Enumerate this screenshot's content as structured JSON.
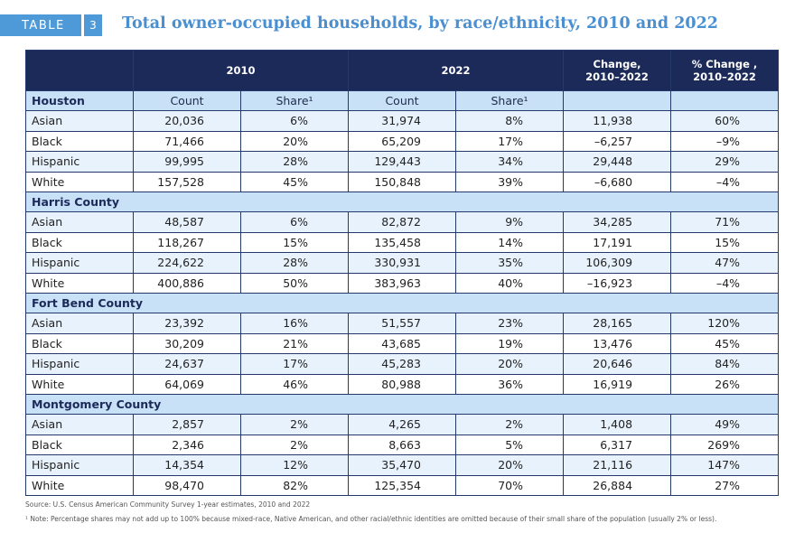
{
  "header": {
    "tag_label": "TABLE",
    "tag_number": "3",
    "title": "Total owner-occupied households, by race/ethnicity, 2010 and 2022"
  },
  "columns": {
    "year1": "2010",
    "year2": "2022",
    "change": "Change,",
    "change_range": "2010–2022",
    "pct_change": "% Change ,",
    "pct_change_range": "2010–2022",
    "count": "Count",
    "share": "Share¹"
  },
  "regions": [
    {
      "name": "Houston",
      "rows": [
        {
          "group": "Asian",
          "count2010": "20,036",
          "share2010": "6%",
          "count2022": "31,974",
          "share2022": "8%",
          "change": "11,938",
          "pct": "60%"
        },
        {
          "group": "Black",
          "count2010": "71,466",
          "share2010": "20%",
          "count2022": "65,209",
          "share2022": "17%",
          "change": "–6,257",
          "pct": "–9%"
        },
        {
          "group": "Hispanic",
          "count2010": "99,995",
          "share2010": "28%",
          "count2022": "129,443",
          "share2022": "34%",
          "change": "29,448",
          "pct": "29%"
        },
        {
          "group": "White",
          "count2010": "157,528",
          "share2010": "45%",
          "count2022": "150,848",
          "share2022": "39%",
          "change": "–6,680",
          "pct": "–4%"
        }
      ]
    },
    {
      "name": "Harris County",
      "rows": [
        {
          "group": "Asian",
          "count2010": "48,587",
          "share2010": "6%",
          "count2022": "82,872",
          "share2022": "9%",
          "change": "34,285",
          "pct": "71%"
        },
        {
          "group": "Black",
          "count2010": "118,267",
          "share2010": "15%",
          "count2022": "135,458",
          "share2022": "14%",
          "change": "17,191",
          "pct": "15%"
        },
        {
          "group": "Hispanic",
          "count2010": "224,622",
          "share2010": "28%",
          "count2022": "330,931",
          "share2022": "35%",
          "change": "106,309",
          "pct": "47%"
        },
        {
          "group": "White",
          "count2010": "400,886",
          "share2010": "50%",
          "count2022": "383,963",
          "share2022": "40%",
          "change": "–16,923",
          "pct": "–4%"
        }
      ]
    },
    {
      "name": "Fort Bend County",
      "rows": [
        {
          "group": "Asian",
          "count2010": "23,392",
          "share2010": "16%",
          "count2022": "51,557",
          "share2022": "23%",
          "change": "28,165",
          "pct": "120%"
        },
        {
          "group": "Black",
          "count2010": "30,209",
          "share2010": "21%",
          "count2022": "43,685",
          "share2022": "19%",
          "change": "13,476",
          "pct": "45%"
        },
        {
          "group": "Hispanic",
          "count2010": "24,637",
          "share2010": "17%",
          "count2022": "45,283",
          "share2022": "20%",
          "change": "20,646",
          "pct": "84%"
        },
        {
          "group": "White",
          "count2010": "64,069",
          "share2010": "46%",
          "count2022": "80,988",
          "share2022": "36%",
          "change": "16,919",
          "pct": "26%"
        }
      ]
    },
    {
      "name": "Montgomery County",
      "rows": [
        {
          "group": "Asian",
          "count2010": "2,857",
          "share2010": "2%",
          "count2022": "4,265",
          "share2022": "2%",
          "change": "1,408",
          "pct": "49%"
        },
        {
          "group": "Black",
          "count2010": "2,346",
          "share2010": "2%",
          "count2022": "8,663",
          "share2022": "5%",
          "change": "6,317",
          "pct": "269%"
        },
        {
          "group": "Hispanic",
          "count2010": "14,354",
          "share2010": "12%",
          "count2022": "35,470",
          "share2022": "20%",
          "change": "21,116",
          "pct": "147%"
        },
        {
          "group": "White",
          "count2010": "98,470",
          "share2010": "82%",
          "count2022": "125,354",
          "share2022": "70%",
          "change": "26,884",
          "pct": "27%"
        }
      ]
    }
  ],
  "footer": {
    "source": "Source: U.S. Census American Community Survey 1-year estimates, 2010 and 2022",
    "note": "¹ Note: Percentage shares may not add up to 100% because mixed-race, Native American, and other racial/ethnic identities are omitted because of their small share of the population (usually 2% or less)."
  },
  "colors": {
    "header_bg": "#1c2a5a",
    "subheader_bg": "#c9e1f6",
    "alt_row_bg": "#e8f2fc",
    "accent": "#4e9ad8",
    "title": "#4a8fd0"
  }
}
